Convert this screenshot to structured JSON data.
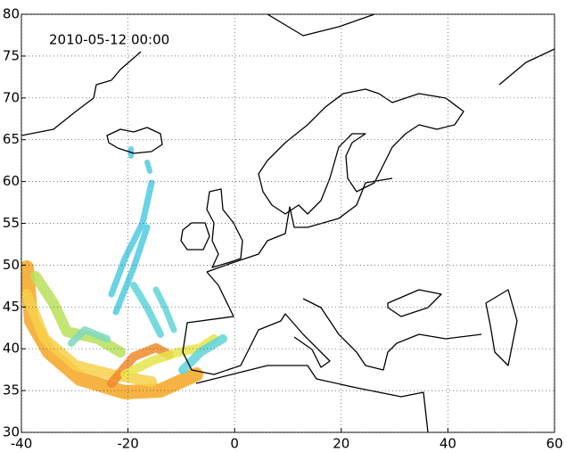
{
  "chart_data": {
    "type": "map",
    "annotation": "2010-05-12 00:00",
    "xlim": [
      -40,
      60
    ],
    "ylim": [
      30,
      80
    ],
    "xticks": [
      -40,
      -20,
      0,
      20,
      40,
      60
    ],
    "yticks": [
      30,
      35,
      40,
      45,
      50,
      55,
      60,
      65,
      70,
      75,
      80
    ],
    "grid": true
  }
}
